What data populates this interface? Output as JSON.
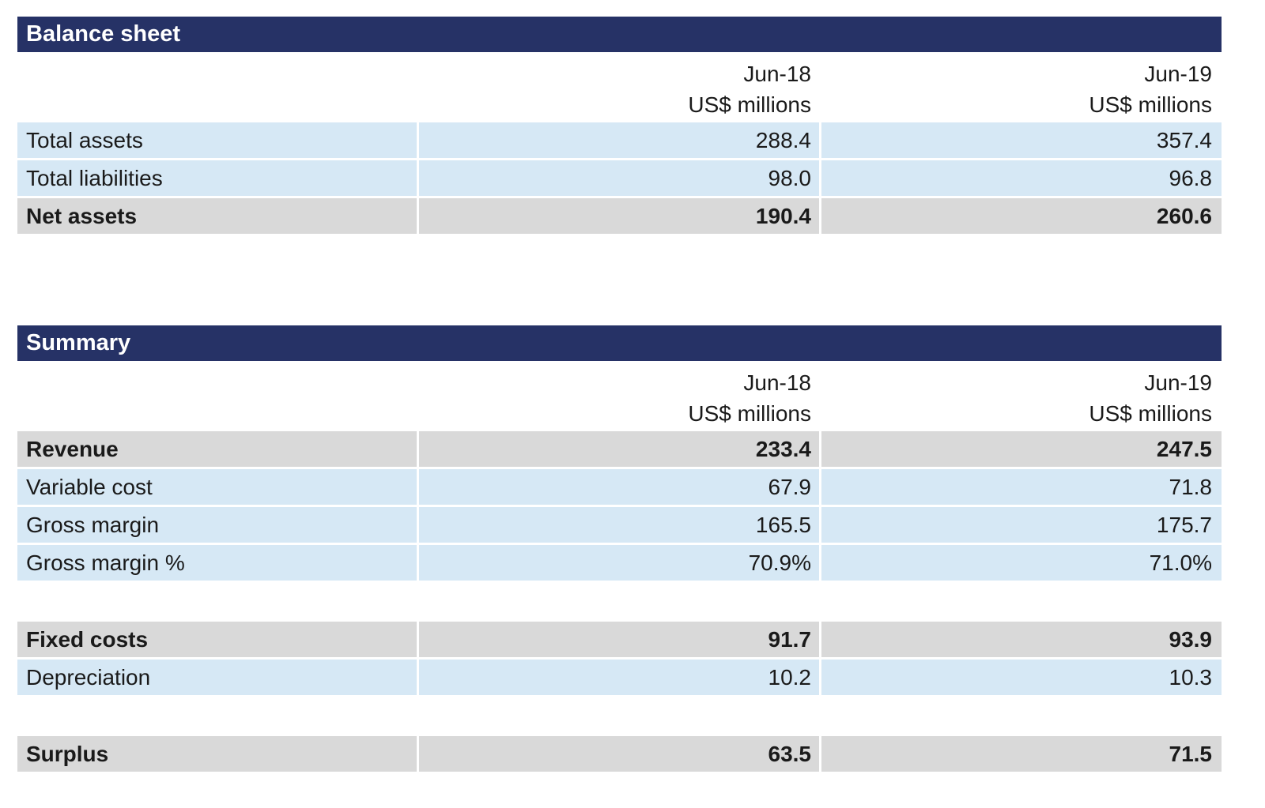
{
  "balance_sheet": {
    "title": "Balance sheet",
    "columns": [
      {
        "period": "Jun-18",
        "unit": "US$ millions"
      },
      {
        "period": "Jun-19",
        "unit": "US$ millions"
      }
    ],
    "rows": [
      {
        "label": "Total assets",
        "v1": "288.4",
        "v2": "357.4"
      },
      {
        "label": "Total liabilities",
        "v1": "98.0",
        "v2": "96.8"
      },
      {
        "label": "Net assets",
        "v1": "190.4",
        "v2": "260.6"
      }
    ]
  },
  "summary": {
    "title": "Summary",
    "columns": [
      {
        "period": "Jun-18",
        "unit": "US$ millions"
      },
      {
        "period": "Jun-19",
        "unit": "US$ millions"
      }
    ],
    "rows": [
      {
        "label": "Revenue",
        "v1": "233.4",
        "v2": "247.5"
      },
      {
        "label": "Variable cost",
        "v1": "67.9",
        "v2": "71.8"
      },
      {
        "label": "Gross margin",
        "v1": "165.5",
        "v2": "175.7"
      },
      {
        "label": "Gross margin %",
        "v1": "70.9%",
        "v2": "71.0%"
      },
      {
        "label": "Fixed costs",
        "v1": "91.7",
        "v2": "93.9"
      },
      {
        "label": "Depreciation",
        "v1": "10.2",
        "v2": "10.3"
      },
      {
        "label": "Surplus",
        "v1": "63.5",
        "v2": "71.5"
      }
    ]
  },
  "colors": {
    "title_bar": "#263266",
    "light_row": "#d6e8f5",
    "total_row": "#d9d9d9"
  }
}
